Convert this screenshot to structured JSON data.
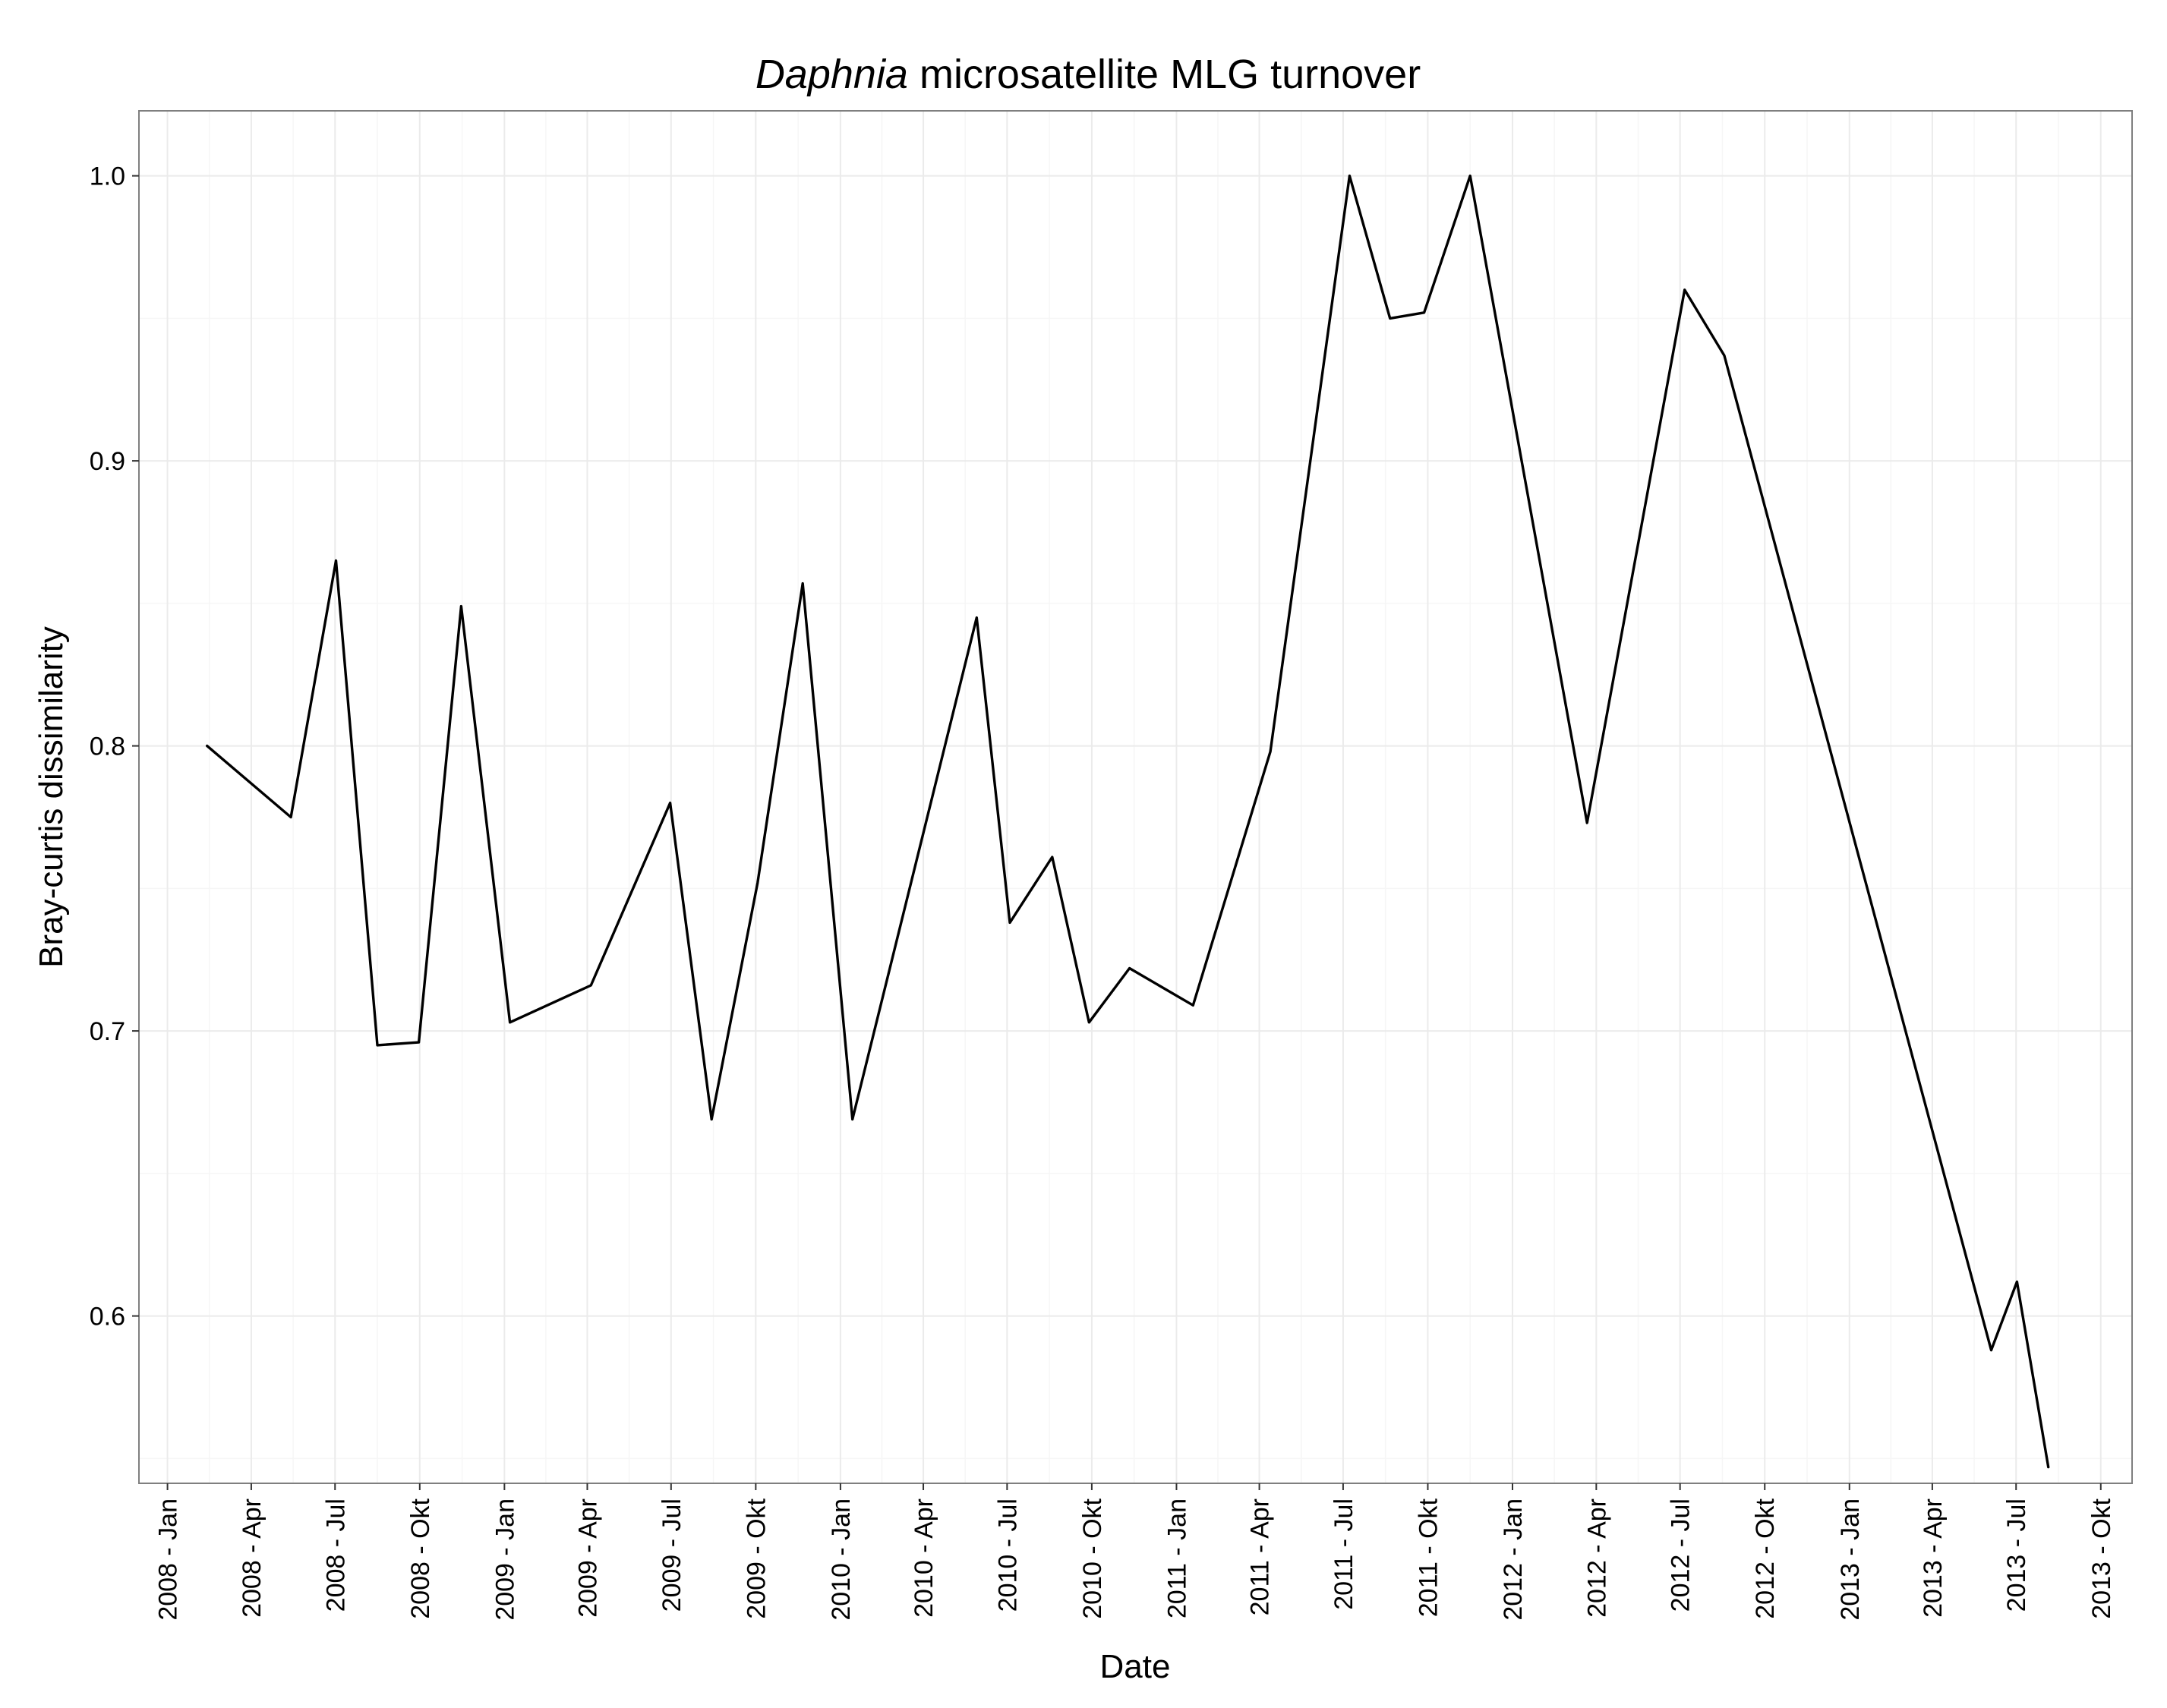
{
  "chart_data": {
    "type": "line",
    "title_italic": "Daphnia",
    "title_rest": " microsatellite MLG turnover",
    "xlabel": "Date",
    "ylabel": "Bray-curtis dissimilarity",
    "grid": true,
    "x_axis": {
      "type": "date",
      "range": [
        "2007-12-01",
        "2013-11-04"
      ],
      "ticks": [
        {
          "date": "2008-01-01",
          "label": "2008 - Jan"
        },
        {
          "date": "2008-04-01",
          "label": "2008 - Apr"
        },
        {
          "date": "2008-07-01",
          "label": "2008 - Jul"
        },
        {
          "date": "2008-10-01",
          "label": "2008 - Okt"
        },
        {
          "date": "2009-01-01",
          "label": "2009 - Jan"
        },
        {
          "date": "2009-04-01",
          "label": "2009 - Apr"
        },
        {
          "date": "2009-07-01",
          "label": "2009 - Jul"
        },
        {
          "date": "2009-10-01",
          "label": "2009 - Okt"
        },
        {
          "date": "2010-01-01",
          "label": "2010 - Jan"
        },
        {
          "date": "2010-04-01",
          "label": "2010 - Apr"
        },
        {
          "date": "2010-07-01",
          "label": "2010 - Jul"
        },
        {
          "date": "2010-10-01",
          "label": "2010 - Okt"
        },
        {
          "date": "2011-01-01",
          "label": "2011 - Jan"
        },
        {
          "date": "2011-04-01",
          "label": "2011 - Apr"
        },
        {
          "date": "2011-07-01",
          "label": "2011 - Jul"
        },
        {
          "date": "2011-10-01",
          "label": "2011 - Okt"
        },
        {
          "date": "2012-01-01",
          "label": "2012 - Jan"
        },
        {
          "date": "2012-04-01",
          "label": "2012 - Apr"
        },
        {
          "date": "2012-07-01",
          "label": "2012 - Jul"
        },
        {
          "date": "2012-10-01",
          "label": "2012 - Okt"
        },
        {
          "date": "2013-01-01",
          "label": "2013 - Jan"
        },
        {
          "date": "2013-04-01",
          "label": "2013 - Apr"
        },
        {
          "date": "2013-07-01",
          "label": "2013 - Jul"
        },
        {
          "date": "2013-10-01",
          "label": "2013 - Okt"
        }
      ]
    },
    "y_axis": {
      "range": [
        0.5413,
        1.0228
      ],
      "ticks": [
        {
          "value": 0.6,
          "label": "0.6"
        },
        {
          "value": 0.7,
          "label": "0.7"
        },
        {
          "value": 0.8,
          "label": "0.8"
        },
        {
          "value": 0.9,
          "label": "0.9"
        },
        {
          "value": 1.0,
          "label": "1.0"
        }
      ]
    },
    "series": [
      {
        "points": [
          {
            "x": "2008-02-13",
            "y": 0.8
          },
          {
            "x": "2008-05-14",
            "y": 0.775
          },
          {
            "x": "2008-07-02",
            "y": 0.865
          },
          {
            "x": "2008-08-16",
            "y": 0.695
          },
          {
            "x": "2008-09-30",
            "y": 0.696
          },
          {
            "x": "2008-11-15",
            "y": 0.849
          },
          {
            "x": "2009-01-07",
            "y": 0.703
          },
          {
            "x": "2009-04-05",
            "y": 0.716
          },
          {
            "x": "2009-06-30",
            "y": 0.78
          },
          {
            "x": "2009-08-14",
            "y": 0.669
          },
          {
            "x": "2009-10-03",
            "y": 0.752
          },
          {
            "x": "2009-11-21",
            "y": 0.857
          },
          {
            "x": "2010-01-14",
            "y": 0.669
          },
          {
            "x": "2010-05-29",
            "y": 0.845
          },
          {
            "x": "2010-07-04",
            "y": 0.738
          },
          {
            "x": "2010-08-19",
            "y": 0.761
          },
          {
            "x": "2010-09-28",
            "y": 0.703
          },
          {
            "x": "2010-11-11",
            "y": 0.722
          },
          {
            "x": "2011-01-19",
            "y": 0.709
          },
          {
            "x": "2011-04-13",
            "y": 0.798
          },
          {
            "x": "2011-07-08",
            "y": 1.0
          },
          {
            "x": "2011-08-21",
            "y": 0.95
          },
          {
            "x": "2011-09-27",
            "y": 0.952
          },
          {
            "x": "2011-11-16",
            "y": 1.0
          },
          {
            "x": "2012-03-22",
            "y": 0.773
          },
          {
            "x": "2012-07-06",
            "y": 0.96
          },
          {
            "x": "2012-08-18",
            "y": 0.937
          },
          {
            "x": "2013-06-04",
            "y": 0.588
          },
          {
            "x": "2013-07-02",
            "y": 0.612
          },
          {
            "x": "2013-08-05",
            "y": 0.547
          }
        ]
      }
    ]
  }
}
